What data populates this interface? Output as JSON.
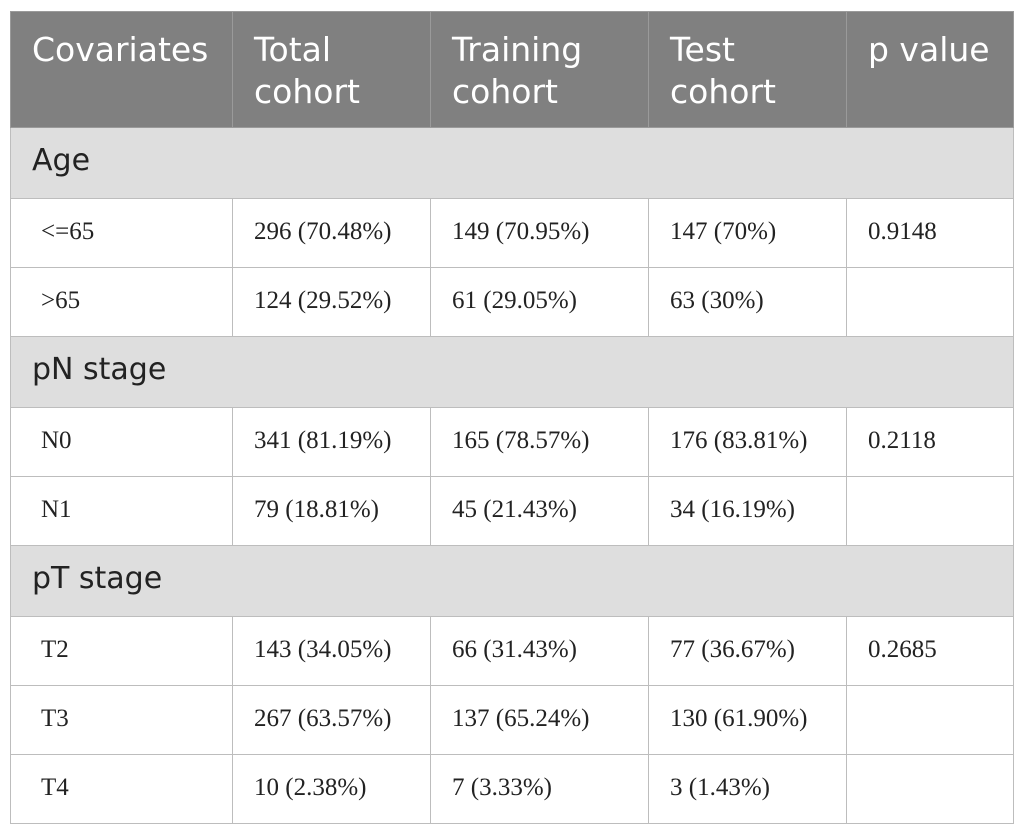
{
  "table": {
    "headers": [
      "Covariates",
      "Total\ncohort",
      "Training\ncohort",
      "Test\ncohort",
      "p value"
    ],
    "groups": [
      {
        "name": "Age",
        "rows": [
          [
            "<=65",
            "296 (70.48%)",
            "149 (70.95%)",
            "147 (70%)",
            "0.9148"
          ],
          [
            ">65",
            "124 (29.52%)",
            "61 (29.05%)",
            "63 (30%)",
            ""
          ]
        ]
      },
      {
        "name": "pN stage",
        "rows": [
          [
            "N0",
            "341 (81.19%)",
            "165 (78.57%)",
            "176 (83.81%)",
            "0.2118"
          ],
          [
            "N1",
            "79 (18.81%)",
            "45 (21.43%)",
            "34 (16.19%)",
            ""
          ]
        ]
      },
      {
        "name": "pT stage",
        "rows": [
          [
            "T2",
            "143 (34.05%)",
            "66 (31.43%)",
            "77 (36.67%)",
            "0.2685"
          ],
          [
            "T3",
            "267 (63.57%)",
            "137 (65.24%)",
            "130 (61.90%)",
            ""
          ],
          [
            "T4",
            "10 (2.38%)",
            "7 (3.33%)",
            "3 (1.43%)",
            ""
          ]
        ]
      }
    ]
  },
  "colors": {
    "header_bg": "#808080",
    "header_text": "#ffffff",
    "group_bg": "#dedede",
    "border": "#bdbdbd"
  }
}
